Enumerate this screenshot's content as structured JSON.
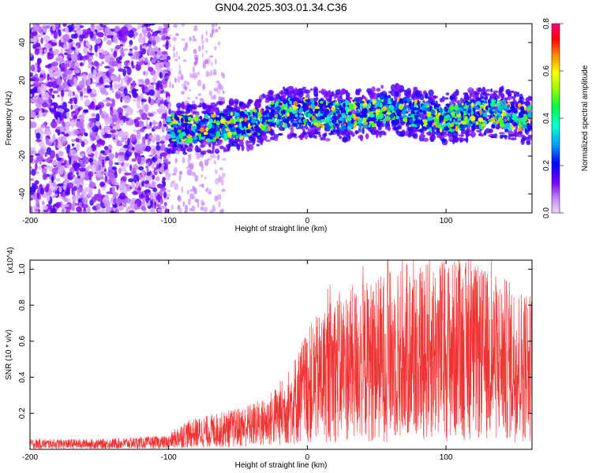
{
  "title": "GN04.2025.303.01.34.C36",
  "chart_data": [
    {
      "type": "heatmap",
      "name": "spectrogram",
      "xlabel": "Height of straight line (km)",
      "ylabel": "Frequency (Hz)",
      "xlim": [
        -200,
        162
      ],
      "ylim": [
        -50,
        50
      ],
      "xticks": [
        -200,
        -100,
        0,
        100
      ],
      "yticks": [
        -40,
        -20,
        0,
        20,
        40
      ],
      "colorbar": {
        "label": "Normalized spectral amplitude",
        "range": [
          0.0,
          0.8
        ],
        "ticks": [
          0.0,
          0.2,
          0.4,
          0.6,
          0.8
        ]
      },
      "description_values": {
        "noise_region_x": [
          -200,
          -100
        ],
        "signal_region_x": [
          -100,
          162
        ],
        "signal_center_hz": [
          {
            "x": -100,
            "f": -5
          },
          {
            "x": -80,
            "f": -6
          },
          {
            "x": -60,
            "f": -4
          },
          {
            "x": -40,
            "f": -3
          },
          {
            "x": -20,
            "f": 3
          },
          {
            "x": 0,
            "f": 3
          },
          {
            "x": 20,
            "f": 1
          },
          {
            "x": 40,
            "f": 2
          },
          {
            "x": 60,
            "f": 5
          },
          {
            "x": 80,
            "f": 2
          },
          {
            "x": 100,
            "f": 0
          },
          {
            "x": 120,
            "f": 2
          },
          {
            "x": 140,
            "f": 3
          },
          {
            "x": 162,
            "f": -1
          }
        ]
      }
    },
    {
      "type": "line",
      "name": "snr",
      "xlabel": "Height of straight line (km)",
      "ylabel": "SNR (10 * v/v)",
      "y_multiplier": "(x10^4)",
      "xlim": [
        -200,
        162
      ],
      "ylim": [
        0,
        1.05
      ],
      "xticks": [
        -200,
        -100,
        0,
        100
      ],
      "yticks": [
        0.2,
        0.4,
        0.6,
        0.8,
        1.0
      ],
      "color": "#ee3333",
      "envelope": [
        {
          "x": -200,
          "y": 0.03
        },
        {
          "x": -150,
          "y": 0.03
        },
        {
          "x": -100,
          "y": 0.04
        },
        {
          "x": -90,
          "y": 0.08
        },
        {
          "x": -70,
          "y": 0.1
        },
        {
          "x": -50,
          "y": 0.12
        },
        {
          "x": -30,
          "y": 0.15
        },
        {
          "x": -15,
          "y": 0.22
        },
        {
          "x": 0,
          "y": 0.35
        },
        {
          "x": 20,
          "y": 0.45
        },
        {
          "x": 50,
          "y": 0.5
        },
        {
          "x": 80,
          "y": 0.55
        },
        {
          "x": 110,
          "y": 0.55
        },
        {
          "x": 140,
          "y": 0.5
        },
        {
          "x": 162,
          "y": 0.45
        }
      ],
      "peak": {
        "x": 58,
        "y": 1.05
      }
    }
  ]
}
